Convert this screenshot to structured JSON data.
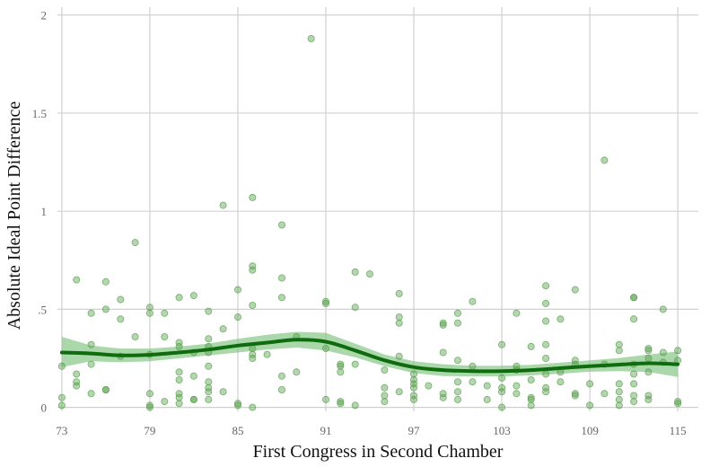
{
  "chart_data": {
    "type": "scatter",
    "title": "",
    "xlabel": "First Congress in Second Chamber",
    "ylabel": "Absolute Ideal Point Difference",
    "xlim": [
      72.7,
      116.4
    ],
    "ylim": [
      -0.02,
      2.04
    ],
    "x_ticks": [
      73,
      79,
      85,
      91,
      97,
      103,
      109,
      115
    ],
    "x_tick_labels": [
      "73",
      "79",
      "85",
      "91",
      "97",
      "103",
      "109",
      "115"
    ],
    "y_ticks": [
      0,
      0.5,
      1,
      1.5,
      2
    ],
    "y_tick_labels": [
      "0",
      ".5",
      "1",
      "1.5",
      "2"
    ],
    "grid": true,
    "legend": "none",
    "colors": {
      "points": "#5aa04f",
      "line": "#0e6b0e",
      "band": "#7cc37c",
      "grid": "#d0d0d0"
    },
    "points": [
      [
        73,
        0.21
      ],
      [
        73,
        0.05
      ],
      [
        73,
        0.01
      ],
      [
        74,
        0.65
      ],
      [
        74,
        0.17
      ],
      [
        74,
        0.13
      ],
      [
        74,
        0.11
      ],
      [
        75,
        0.48
      ],
      [
        75,
        0.32
      ],
      [
        75,
        0.22
      ],
      [
        75,
        0.07
      ],
      [
        76,
        0.64
      ],
      [
        76,
        0.5
      ],
      [
        76,
        0.09
      ],
      [
        76,
        0.09
      ],
      [
        77,
        0.55
      ],
      [
        77,
        0.45
      ],
      [
        77,
        0.26
      ],
      [
        78,
        0.84
      ],
      [
        78,
        0.36
      ],
      [
        79,
        0.51
      ],
      [
        79,
        0.48
      ],
      [
        79,
        0.27
      ],
      [
        79,
        0.07
      ],
      [
        79,
        0.01
      ],
      [
        79,
        0.0
      ],
      [
        80,
        0.48
      ],
      [
        80,
        0.36
      ],
      [
        80,
        0.03
      ],
      [
        81,
        0.56
      ],
      [
        81,
        0.33
      ],
      [
        81,
        0.31
      ],
      [
        81,
        0.18
      ],
      [
        81,
        0.14
      ],
      [
        81,
        0.07
      ],
      [
        81,
        0.05
      ],
      [
        81,
        0.02
      ],
      [
        82,
        0.57
      ],
      [
        82,
        0.28
      ],
      [
        82,
        0.16
      ],
      [
        82,
        0.04
      ],
      [
        82,
        0.04
      ],
      [
        83,
        0.49
      ],
      [
        83,
        0.35
      ],
      [
        83,
        0.31
      ],
      [
        83,
        0.28
      ],
      [
        83,
        0.21
      ],
      [
        83,
        0.13
      ],
      [
        83,
        0.1
      ],
      [
        83,
        0.08
      ],
      [
        83,
        0.04
      ],
      [
        84,
        1.03
      ],
      [
        84,
        0.4
      ],
      [
        84,
        0.08
      ],
      [
        85,
        0.6
      ],
      [
        85,
        0.46
      ],
      [
        85,
        0.02
      ],
      [
        85,
        0.01
      ],
      [
        86,
        1.07
      ],
      [
        86,
        0.72
      ],
      [
        86,
        0.7
      ],
      [
        86,
        0.52
      ],
      [
        86,
        0.3
      ],
      [
        86,
        0.27
      ],
      [
        86,
        0.25
      ],
      [
        86,
        0.0
      ],
      [
        87,
        0.27
      ],
      [
        88,
        0.93
      ],
      [
        88,
        0.66
      ],
      [
        88,
        0.56
      ],
      [
        88,
        0.16
      ],
      [
        88,
        0.09
      ],
      [
        89,
        0.36
      ],
      [
        89,
        0.18
      ],
      [
        90,
        1.88
      ],
      [
        91,
        0.54
      ],
      [
        91,
        0.53
      ],
      [
        91,
        0.3
      ],
      [
        91,
        0.04
      ],
      [
        92,
        0.22
      ],
      [
        92,
        0.21
      ],
      [
        92,
        0.18
      ],
      [
        92,
        0.03
      ],
      [
        92,
        0.02
      ],
      [
        93,
        0.69
      ],
      [
        93,
        0.51
      ],
      [
        93,
        0.22
      ],
      [
        93,
        0.01
      ],
      [
        94,
        0.68
      ],
      [
        95,
        0.19
      ],
      [
        95,
        0.1
      ],
      [
        95,
        0.06
      ],
      [
        95,
        0.03
      ],
      [
        96,
        0.58
      ],
      [
        96,
        0.46
      ],
      [
        96,
        0.43
      ],
      [
        96,
        0.26
      ],
      [
        96,
        0.08
      ],
      [
        97,
        0.17
      ],
      [
        97,
        0.14
      ],
      [
        97,
        0.12
      ],
      [
        97,
        0.1
      ],
      [
        97,
        0.06
      ],
      [
        97,
        0.04
      ],
      [
        98,
        0.11
      ],
      [
        99,
        0.43
      ],
      [
        99,
        0.42
      ],
      [
        99,
        0.28
      ],
      [
        99,
        0.07
      ],
      [
        99,
        0.05
      ],
      [
        100,
        0.48
      ],
      [
        100,
        0.43
      ],
      [
        100,
        0.24
      ],
      [
        100,
        0.13
      ],
      [
        100,
        0.08
      ],
      [
        100,
        0.04
      ],
      [
        101,
        0.54
      ],
      [
        101,
        0.21
      ],
      [
        101,
        0.13
      ],
      [
        102,
        0.11
      ],
      [
        102,
        0.04
      ],
      [
        103,
        0.32
      ],
      [
        103,
        0.15
      ],
      [
        103,
        0.1
      ],
      [
        103,
        0.08
      ],
      [
        103,
        0.0
      ],
      [
        104,
        0.48
      ],
      [
        104,
        0.21
      ],
      [
        104,
        0.19
      ],
      [
        104,
        0.11
      ],
      [
        104,
        0.07
      ],
      [
        105,
        0.31
      ],
      [
        105,
        0.14
      ],
      [
        105,
        0.05
      ],
      [
        105,
        0.04
      ],
      [
        105,
        0.01
      ],
      [
        106,
        0.62
      ],
      [
        106,
        0.53
      ],
      [
        106,
        0.44
      ],
      [
        106,
        0.32
      ],
      [
        106,
        0.25
      ],
      [
        106,
        0.17
      ],
      [
        106,
        0.1
      ],
      [
        106,
        0.08
      ],
      [
        107,
        0.45
      ],
      [
        107,
        0.18
      ],
      [
        107,
        0.13
      ],
      [
        108,
        0.6
      ],
      [
        108,
        0.24
      ],
      [
        108,
        0.22
      ],
      [
        108,
        0.07
      ],
      [
        108,
        0.06
      ],
      [
        109,
        0.12
      ],
      [
        109,
        0.01
      ],
      [
        110,
        1.26
      ],
      [
        110,
        0.22
      ],
      [
        110,
        0.07
      ],
      [
        111,
        0.32
      ],
      [
        111,
        0.29
      ],
      [
        111,
        0.12
      ],
      [
        111,
        0.08
      ],
      [
        111,
        0.04
      ],
      [
        111,
        0.01
      ],
      [
        112,
        0.56
      ],
      [
        112,
        0.56
      ],
      [
        112,
        0.45
      ],
      [
        112,
        0.22
      ],
      [
        112,
        0.17
      ],
      [
        112,
        0.12
      ],
      [
        112,
        0.06
      ],
      [
        112,
        0.03
      ],
      [
        113,
        0.3
      ],
      [
        113,
        0.29
      ],
      [
        113,
        0.25
      ],
      [
        113,
        0.18
      ],
      [
        113,
        0.06
      ],
      [
        113,
        0.04
      ],
      [
        114,
        0.5
      ],
      [
        114,
        0.28
      ],
      [
        114,
        0.23
      ],
      [
        115,
        0.29
      ],
      [
        115,
        0.24
      ],
      [
        115,
        0.03
      ],
      [
        115,
        0.02
      ]
    ],
    "smooth": {
      "x": [
        73,
        75,
        77,
        79,
        81,
        83,
        85,
        87,
        89,
        91,
        93,
        95,
        97,
        99,
        101,
        103,
        105,
        107,
        109,
        111,
        113,
        115
      ],
      "y": [
        0.28,
        0.275,
        0.265,
        0.268,
        0.28,
        0.295,
        0.315,
        0.33,
        0.345,
        0.335,
        0.29,
        0.24,
        0.205,
        0.19,
        0.185,
        0.185,
        0.19,
        0.2,
        0.21,
        0.218,
        0.225,
        0.22
      ],
      "lower": [
        0.205,
        0.235,
        0.23,
        0.235,
        0.25,
        0.265,
        0.28,
        0.295,
        0.305,
        0.29,
        0.255,
        0.21,
        0.175,
        0.16,
        0.158,
        0.158,
        0.163,
        0.172,
        0.182,
        0.185,
        0.18,
        0.155
      ],
      "upper": [
        0.36,
        0.315,
        0.3,
        0.3,
        0.31,
        0.325,
        0.35,
        0.37,
        0.385,
        0.38,
        0.325,
        0.27,
        0.235,
        0.22,
        0.212,
        0.212,
        0.217,
        0.228,
        0.24,
        0.252,
        0.27,
        0.285
      ]
    }
  }
}
